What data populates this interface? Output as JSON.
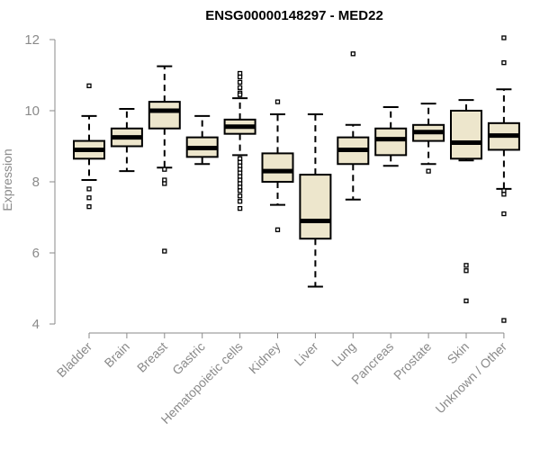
{
  "chart_data": {
    "type": "boxplot",
    "title": "ENSG00000148297 - MED22",
    "xlabel": "",
    "ylabel": "Expression",
    "ylim": [
      4,
      12
    ],
    "yticks": [
      4,
      6,
      8,
      10,
      12
    ],
    "colors": {
      "box_fill": "#ede6cc",
      "stroke": "#000000",
      "axis": "#8a8a8a"
    },
    "categories": [
      "Bladder",
      "Brain",
      "Breast",
      "Gastric",
      "Hematopoietic cells",
      "Kidney",
      "Liver",
      "Lung",
      "Pancreas",
      "Prostate",
      "Skin",
      "Unknown / Other"
    ],
    "boxes": [
      {
        "category": "Bladder",
        "whisker_low": 8.05,
        "q1": 8.65,
        "median": 8.9,
        "q3": 9.15,
        "whisker_high": 9.85,
        "outliers": [
          10.7,
          7.8,
          7.55,
          7.3
        ]
      },
      {
        "category": "Brain",
        "whisker_low": 8.3,
        "q1": 9.0,
        "median": 9.25,
        "q3": 9.5,
        "whisker_high": 10.05,
        "outliers": []
      },
      {
        "category": "Breast",
        "whisker_low": 8.4,
        "q1": 9.5,
        "median": 10.0,
        "q3": 10.25,
        "whisker_high": 11.25,
        "outliers": [
          8.35,
          8.05,
          7.95,
          6.05
        ]
      },
      {
        "category": "Gastric",
        "whisker_low": 8.5,
        "q1": 8.7,
        "median": 8.95,
        "q3": 9.25,
        "whisker_high": 9.85,
        "outliers": []
      },
      {
        "category": "Hematopoietic cells",
        "whisker_low": 8.75,
        "q1": 9.35,
        "median": 9.55,
        "q3": 9.75,
        "whisker_high": 10.35,
        "outliers": [
          11.05,
          10.95,
          10.8,
          10.65,
          10.5,
          10.45,
          8.65,
          8.55,
          8.45,
          8.35,
          8.25,
          8.15,
          8.05,
          7.95,
          7.85,
          7.75,
          7.6,
          7.45,
          7.25
        ]
      },
      {
        "category": "Kidney",
        "whisker_low": 7.35,
        "q1": 8.0,
        "median": 8.3,
        "q3": 8.8,
        "whisker_high": 9.9,
        "outliers": [
          10.25,
          6.65
        ]
      },
      {
        "category": "Liver",
        "whisker_low": 5.05,
        "q1": 6.4,
        "median": 6.9,
        "q3": 8.2,
        "whisker_high": 9.9,
        "outliers": []
      },
      {
        "category": "Lung",
        "whisker_low": 7.5,
        "q1": 8.5,
        "median": 8.9,
        "q3": 9.25,
        "whisker_high": 9.6,
        "outliers": [
          11.6
        ]
      },
      {
        "category": "Pancreas",
        "whisker_low": 8.45,
        "q1": 8.75,
        "median": 9.2,
        "q3": 9.5,
        "whisker_high": 10.1,
        "outliers": []
      },
      {
        "category": "Prostate",
        "whisker_low": 8.5,
        "q1": 9.15,
        "median": 9.4,
        "q3": 9.6,
        "whisker_high": 10.2,
        "outliers": [
          8.3
        ]
      },
      {
        "category": "Skin",
        "whisker_low": 8.6,
        "q1": 8.65,
        "median": 9.1,
        "q3": 10.0,
        "whisker_high": 10.3,
        "outliers": [
          5.65,
          5.5,
          4.65
        ]
      },
      {
        "category": "Unknown / Other",
        "whisker_low": 7.8,
        "q1": 8.9,
        "median": 9.3,
        "q3": 9.65,
        "whisker_high": 10.6,
        "outliers": [
          12.05,
          11.35,
          7.75,
          7.65,
          7.1,
          4.1
        ]
      }
    ]
  }
}
